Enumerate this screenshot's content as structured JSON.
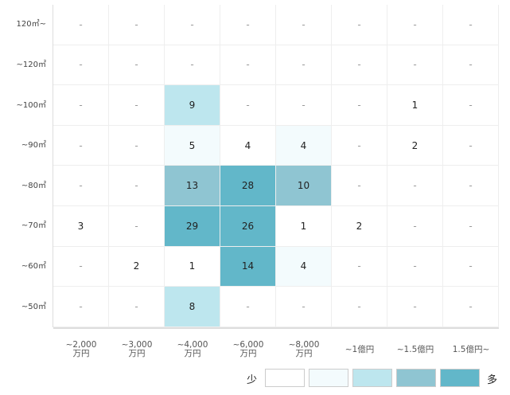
{
  "heatmap": {
    "row_labels": [
      "120㎡~",
      "~120㎡",
      "~100㎡",
      "~90㎡",
      "~80㎡",
      "~70㎡",
      "~60㎡",
      "~50㎡"
    ],
    "column_labels": [
      [
        "~2,000",
        "万円"
      ],
      [
        "~3,000",
        "万円"
      ],
      [
        "~4,000",
        "万円"
      ],
      [
        "~6,000",
        "万円"
      ],
      [
        "~8,000",
        "万円"
      ],
      [
        "~1億円"
      ],
      [
        "~1.5億円"
      ],
      [
        "1.5億円~"
      ]
    ],
    "rows": [
      [
        "-",
        "-",
        "-",
        "-",
        "-",
        "-",
        "-",
        "-"
      ],
      [
        "-",
        "-",
        "-",
        "-",
        "-",
        "-",
        "-",
        "-"
      ],
      [
        "-",
        "-",
        "9",
        "-",
        "-",
        "-",
        "1",
        "-"
      ],
      [
        "-",
        "-",
        "5",
        "4",
        "4",
        "-",
        "2",
        "-"
      ],
      [
        "-",
        "-",
        "13",
        "28",
        "10",
        "-",
        "-",
        "-"
      ],
      [
        "3",
        "-",
        "29",
        "26",
        "1",
        "2",
        "-",
        "-"
      ],
      [
        "-",
        "2",
        "1",
        "14",
        "4",
        "-",
        "-",
        "-"
      ],
      [
        "-",
        "-",
        "8",
        "-",
        "-",
        "-",
        "-",
        "-"
      ]
    ],
    "shades": [
      [
        0,
        0,
        0,
        0,
        0,
        0,
        0,
        0
      ],
      [
        0,
        0,
        0,
        0,
        0,
        0,
        0,
        0
      ],
      [
        0,
        0,
        2,
        0,
        0,
        0,
        0,
        0
      ],
      [
        0,
        0,
        1,
        0,
        1,
        0,
        0,
        0
      ],
      [
        0,
        0,
        3,
        4,
        3,
        0,
        0,
        0
      ],
      [
        0,
        0,
        4,
        4,
        0,
        0,
        0,
        0
      ],
      [
        0,
        0,
        0,
        4,
        1,
        0,
        0,
        0
      ],
      [
        0,
        0,
        2,
        0,
        0,
        0,
        0,
        0
      ]
    ],
    "legend": {
      "low": "少",
      "high": "多",
      "colors": [
        "#ffffff",
        "#f3fbfd",
        "#bde6ee",
        "#8fc5d2",
        "#62b7c9"
      ]
    }
  }
}
